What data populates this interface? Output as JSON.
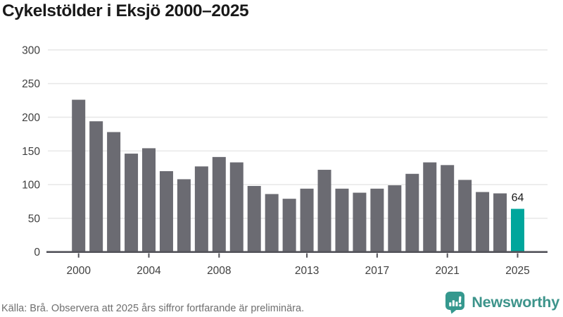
{
  "title": "Cykelstölder i Eksjö 2000–2025",
  "footer": {
    "source": "Källa: Brå. Observera att 2025 års siffror fortfarande är preliminära."
  },
  "logo": {
    "text": "Newsworthy",
    "icon": "newsworthy-speech-bubble-bar-chart-icon"
  },
  "colors": {
    "bar": "#6b6b72",
    "highlight": "#00a69c",
    "grid": "#e8e8e8",
    "axis": "#53535a",
    "tick_label": "#3f3f3f",
    "value_label": "#1a1a1a",
    "title": "#191919",
    "footer_text": "#6f6f6f",
    "logo_teal": "#3d948b",
    "logo_icon_teal": "#35988e",
    "background": "#ffffff"
  },
  "chart_data": {
    "type": "bar",
    "title": "Cykelstölder i Eksjö 2000–2025",
    "categories": [
      2000,
      2001,
      2002,
      2003,
      2004,
      2005,
      2006,
      2007,
      2008,
      2009,
      2010,
      2011,
      2012,
      2013,
      2014,
      2015,
      2016,
      2017,
      2018,
      2019,
      2020,
      2021,
      2022,
      2023,
      2024,
      2025
    ],
    "values": [
      226,
      194,
      178,
      146,
      154,
      120,
      108,
      127,
      141,
      133,
      98,
      86,
      79,
      94,
      122,
      94,
      88,
      94,
      99,
      116,
      133,
      129,
      107,
      89,
      87,
      64
    ],
    "highlight_category": 2025,
    "highlight_value_label": "64",
    "xlabel": "",
    "ylabel": "",
    "ylim": [
      0,
      300
    ],
    "yticks": [
      0,
      50,
      100,
      150,
      200,
      250,
      300
    ],
    "xticks": [
      2000,
      2004,
      2008,
      2013,
      2017,
      2021,
      2025
    ],
    "grid": "horizontal",
    "legend": "none"
  }
}
